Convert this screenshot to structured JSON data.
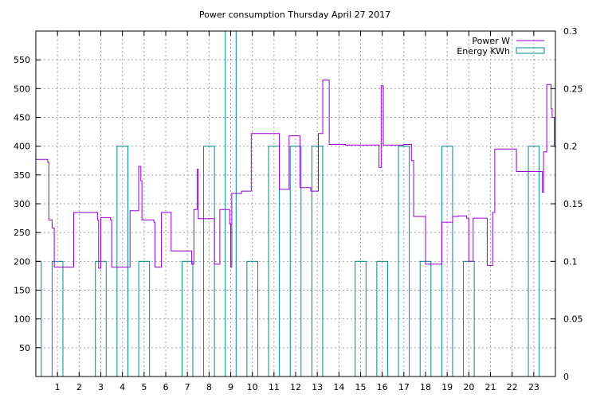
{
  "chart_data": {
    "type": "line",
    "title": "Power consumption Thursday April 27 2017",
    "x_ticks": [
      "1",
      "2",
      "3",
      "4",
      "5",
      "6",
      "7",
      "8",
      "9",
      "10",
      "11",
      "12",
      "13",
      "14",
      "15",
      "16",
      "17",
      "18",
      "19",
      "20",
      "21",
      "22",
      "23"
    ],
    "xlim": [
      0,
      24
    ],
    "y_ticks": [
      "50",
      "100",
      "150",
      "200",
      "250",
      "300",
      "350",
      "400",
      "450",
      "500",
      "550"
    ],
    "ylim": [
      0,
      600
    ],
    "y2_ticks": [
      "0",
      "0.05",
      "0.1",
      "0.15",
      "0.2",
      "0.25",
      "0.3"
    ],
    "y2lim": [
      0,
      0.3
    ],
    "grid": true,
    "legend_position": "top-right",
    "series": [
      {
        "name": "Power W",
        "axis": "left",
        "color": "#9400d3",
        "x": [
          0,
          0.55,
          0.6,
          0.75,
          0.85,
          0.9,
          1.3,
          1.75,
          1.8,
          2.4,
          2.85,
          2.9,
          3.0,
          3.05,
          3.45,
          3.5,
          3.55,
          3.7,
          3.75,
          4.3,
          4.35,
          4.7,
          4.75,
          4.85,
          4.9,
          5.35,
          5.45,
          5.5,
          5.7,
          5.8,
          6.2,
          6.25,
          7.05,
          7.15,
          7.2,
          7.3,
          7.35,
          7.45,
          7.5,
          8.2,
          8.25,
          8.45,
          8.5,
          8.55,
          8.95,
          9.0,
          9.05,
          9.1,
          9.5,
          9.95,
          10.9,
          11.25,
          11.3,
          11.7,
          11.75,
          12.2,
          12.7,
          12.8,
          13.05,
          13.2,
          13.25,
          13.35,
          13.55,
          14.3,
          14.9,
          15.85,
          15.9,
          15.95,
          16.05,
          16.3,
          17.0,
          17.1,
          17.35,
          17.45,
          18.0,
          18.3,
          18.6,
          18.75,
          19.25,
          19.5,
          19.65,
          19.9,
          20.0,
          20.2,
          20.3,
          20.85,
          20.9,
          21.1,
          21.2,
          21.75,
          22.2,
          22.9,
          23.3,
          23.4,
          23.45,
          23.55,
          23.6,
          23.8,
          23.85,
          23.95
        ],
        "y": [
          377,
          372,
          272,
          258,
          190,
          190,
          190,
          285,
          285,
          285,
          272,
          188,
          276,
          276,
          272,
          190,
          190,
          190,
          190,
          190,
          288,
          288,
          365,
          340,
          272,
          272,
          268,
          190,
          190,
          285,
          285,
          218,
          218,
          218,
          195,
          290,
          290,
          360,
          274,
          274,
          195,
          195,
          290,
          290,
          265,
          190,
          318,
          318,
          322,
          422,
          422,
          325,
          325,
          418,
          418,
          328,
          322,
          322,
          422,
          422,
          515,
          515,
          403,
          402,
          402,
          363,
          363,
          505,
          402,
          402,
          403,
          403,
          375,
          278,
          195,
          195,
          195,
          268,
          278,
          279,
          279,
          275,
          200,
          275,
          275,
          193,
          193,
          285,
          395,
          395,
          356,
          356,
          356,
          320,
          390,
          390,
          507,
          465,
          450,
          400
        ]
      },
      {
        "name": "Energy KWh",
        "axis": "right",
        "color": "#008b8b",
        "type": "step-bars",
        "intervals": [
          {
            "x0": 0.0,
            "x1": 0.25,
            "value": 0.1
          },
          {
            "x0": 0.75,
            "x1": 1.25,
            "value": 0.1
          },
          {
            "x0": 2.75,
            "x1": 3.25,
            "value": 0.1
          },
          {
            "x0": 3.75,
            "x1": 4.25,
            "value": 0.2
          },
          {
            "x0": 4.75,
            "x1": 5.25,
            "value": 0.1
          },
          {
            "x0": 6.75,
            "x1": 7.25,
            "value": 0.1
          },
          {
            "x0": 7.75,
            "x1": 8.25,
            "value": 0.2
          },
          {
            "x0": 8.75,
            "x1": 9.25,
            "value": 0.3
          },
          {
            "x0": 9.75,
            "x1": 10.25,
            "value": 0.1
          },
          {
            "x0": 10.75,
            "x1": 11.25,
            "value": 0.2
          },
          {
            "x0": 11.75,
            "x1": 12.25,
            "value": 0.2
          },
          {
            "x0": 12.75,
            "x1": 13.25,
            "value": 0.2
          },
          {
            "x0": 14.75,
            "x1": 15.25,
            "value": 0.1
          },
          {
            "x0": 15.75,
            "x1": 16.25,
            "value": 0.1
          },
          {
            "x0": 16.75,
            "x1": 17.25,
            "value": 0.2
          },
          {
            "x0": 17.75,
            "x1": 18.25,
            "value": 0.1
          },
          {
            "x0": 18.75,
            "x1": 19.25,
            "value": 0.2
          },
          {
            "x0": 19.75,
            "x1": 20.25,
            "value": 0.1
          },
          {
            "x0": 22.75,
            "x1": 23.25,
            "value": 0.2
          }
        ]
      }
    ]
  }
}
